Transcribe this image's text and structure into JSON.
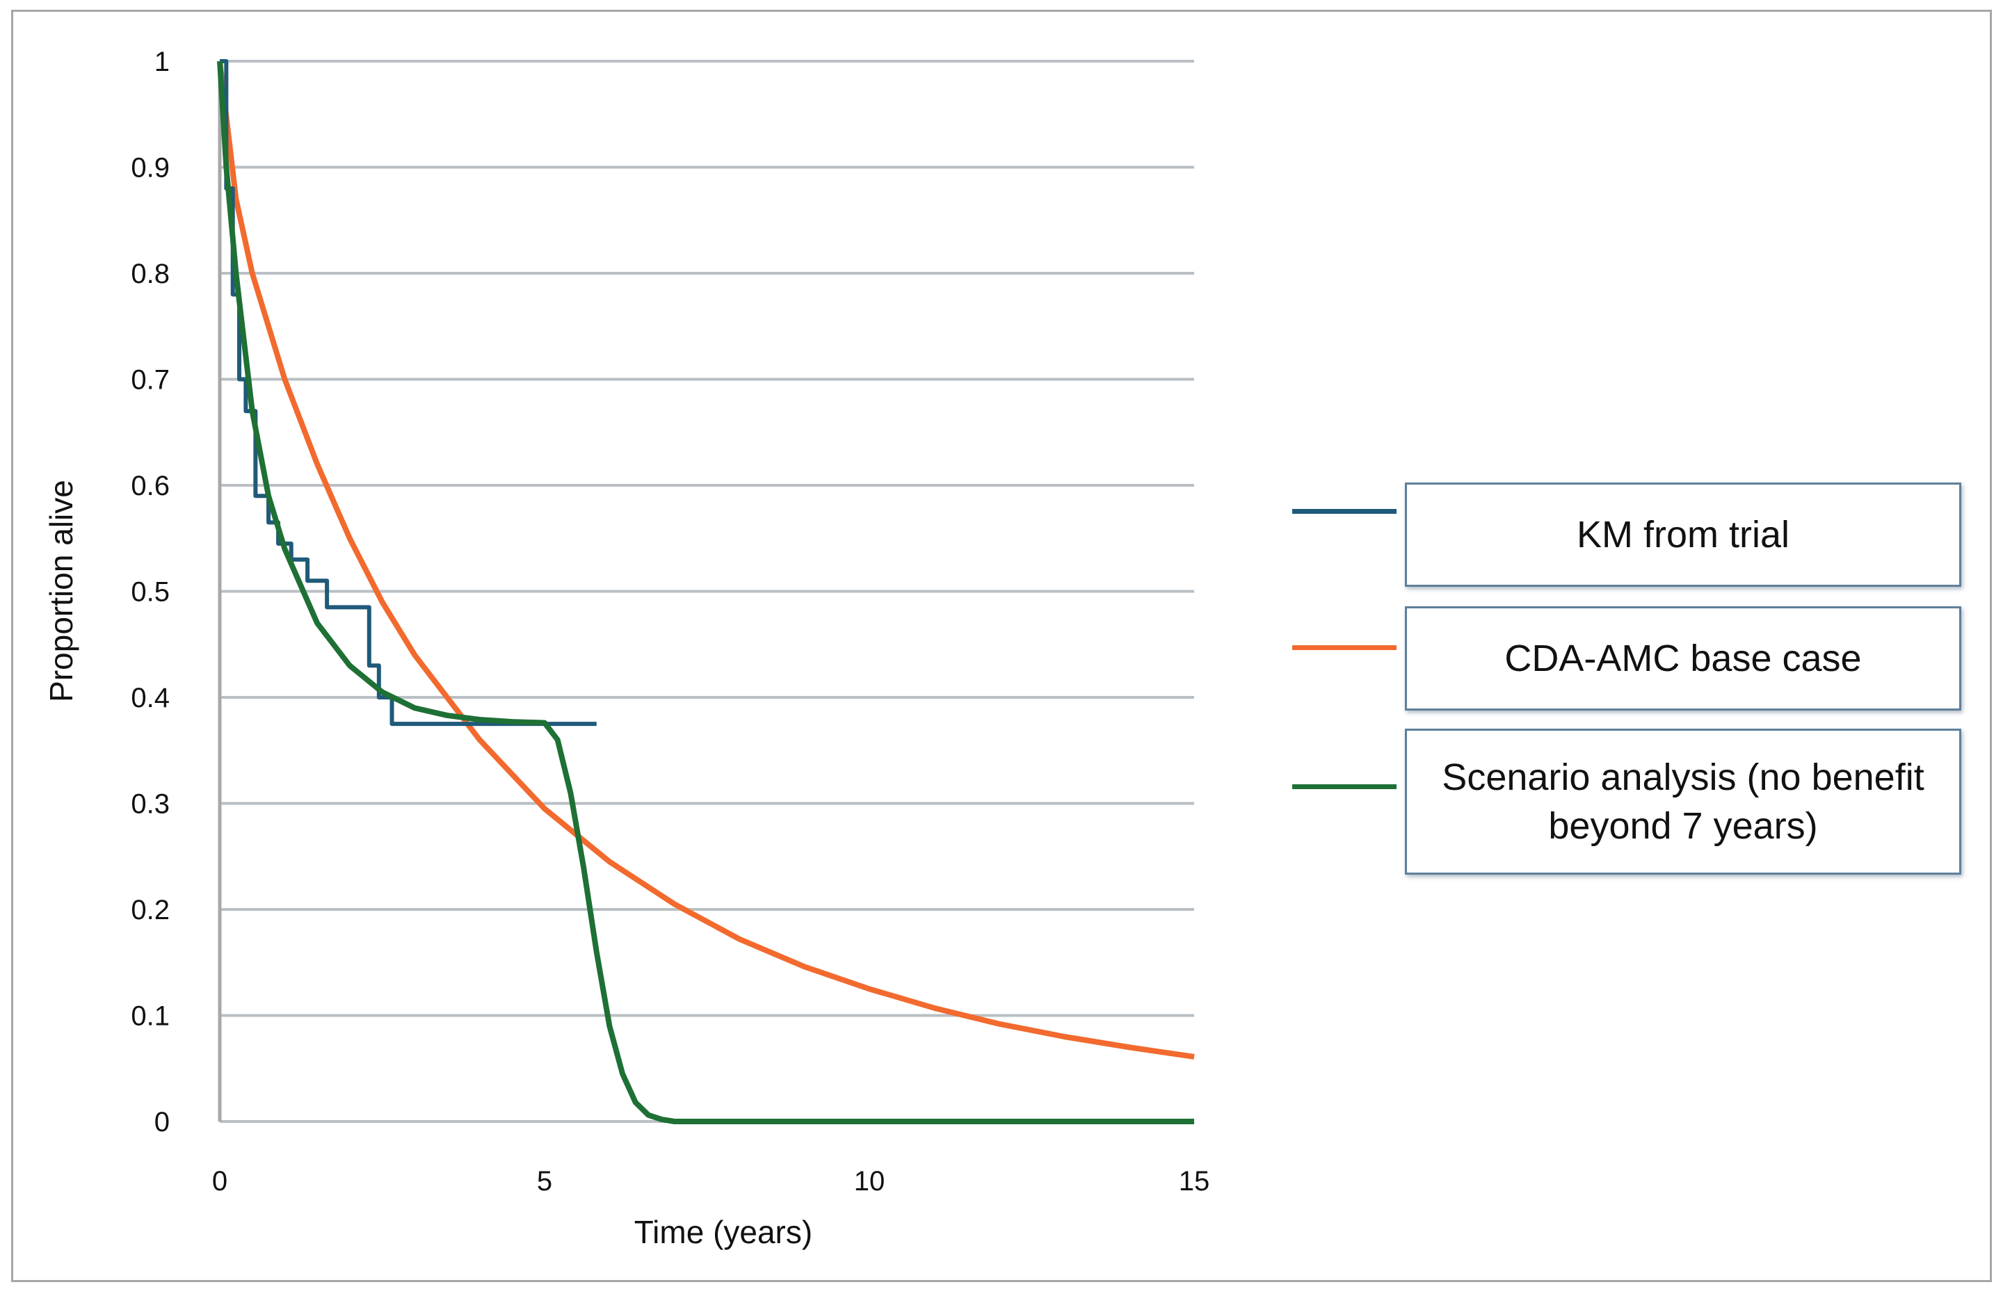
{
  "chart_data": {
    "type": "line",
    "xlabel": "Time (years)",
    "ylabel": "Proportion alive",
    "xlim": [
      0,
      15
    ],
    "ylim": [
      0,
      1
    ],
    "xticks": [
      "0",
      "5",
      "10",
      "15"
    ],
    "yticks": [
      "0",
      "0.1",
      "0.2",
      "0.3",
      "0.4",
      "0.5",
      "0.6",
      "0.7",
      "0.8",
      "0.9",
      "1"
    ],
    "grid": "horizontal",
    "legend_placement": "right",
    "series": [
      {
        "name": "KM from trial",
        "color": "#1f5a7a",
        "step": true,
        "x": [
          0,
          0.1,
          0.2,
          0.3,
          0.4,
          0.55,
          0.75,
          0.9,
          1.1,
          1.35,
          1.65,
          2.3,
          2.45,
          2.65,
          5.8
        ],
        "y": [
          1,
          0.88,
          0.78,
          0.7,
          0.67,
          0.59,
          0.565,
          0.545,
          0.53,
          0.51,
          0.485,
          0.43,
          0.4,
          0.375,
          0.375
        ]
      },
      {
        "name": "CDA-AMC base case",
        "color": "#f26a2e",
        "x": [
          0,
          0.25,
          0.5,
          1,
          1.5,
          2,
          2.5,
          3,
          4,
          5,
          6,
          7,
          8,
          9,
          10,
          11,
          12,
          13,
          14,
          15
        ],
        "y": [
          1,
          0.87,
          0.8,
          0.7,
          0.62,
          0.55,
          0.49,
          0.44,
          0.36,
          0.295,
          0.245,
          0.205,
          0.172,
          0.146,
          0.125,
          0.107,
          0.092,
          0.08,
          0.07,
          0.061
        ]
      },
      {
        "name": "Scenario analysis (no benefit beyond 7 years)",
        "color": "#1e7035",
        "x": [
          0,
          0.1,
          0.25,
          0.5,
          0.75,
          1,
          1.5,
          2,
          2.5,
          3,
          3.5,
          4,
          4.5,
          5,
          5.2,
          5.4,
          5.6,
          5.8,
          6.0,
          6.2,
          6.4,
          6.6,
          6.8,
          7,
          15
        ],
        "y": [
          1,
          0.9,
          0.8,
          0.67,
          0.59,
          0.54,
          0.47,
          0.43,
          0.405,
          0.39,
          0.383,
          0.379,
          0.377,
          0.376,
          0.36,
          0.31,
          0.24,
          0.16,
          0.09,
          0.045,
          0.018,
          0.006,
          0.002,
          0,
          0
        ]
      }
    ]
  }
}
